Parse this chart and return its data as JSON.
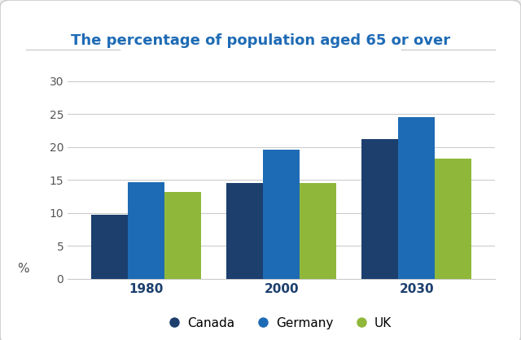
{
  "title": "The percentage of population aged 65 or over",
  "years": [
    "1980",
    "2000",
    "2030"
  ],
  "countries": [
    "Canada",
    "Germany",
    "UK"
  ],
  "values": {
    "Canada": [
      9.7,
      14.5,
      21.2
    ],
    "Germany": [
      14.7,
      19.6,
      24.6
    ],
    "UK": [
      13.2,
      14.6,
      18.2
    ]
  },
  "colors": {
    "Canada": "#1c3f6e",
    "Germany": "#1e6bb5",
    "UK": "#8fb83a"
  },
  "ylim": [
    0,
    32
  ],
  "yticks": [
    0,
    5,
    10,
    15,
    20,
    25,
    30
  ],
  "ylabel": "%",
  "outer_bg": "#f0f0f0",
  "inner_bg": "#ffffff",
  "title_color": "#1e6bb5",
  "title_fontsize": 13,
  "bar_width": 0.27,
  "tick_label_color": "#555555",
  "tick_label_fontsize": 10,
  "year_label_color": "#1c3f6e",
  "year_label_fontsize": 11,
  "grid_color": "#cccccc",
  "legend_fontsize": 11
}
